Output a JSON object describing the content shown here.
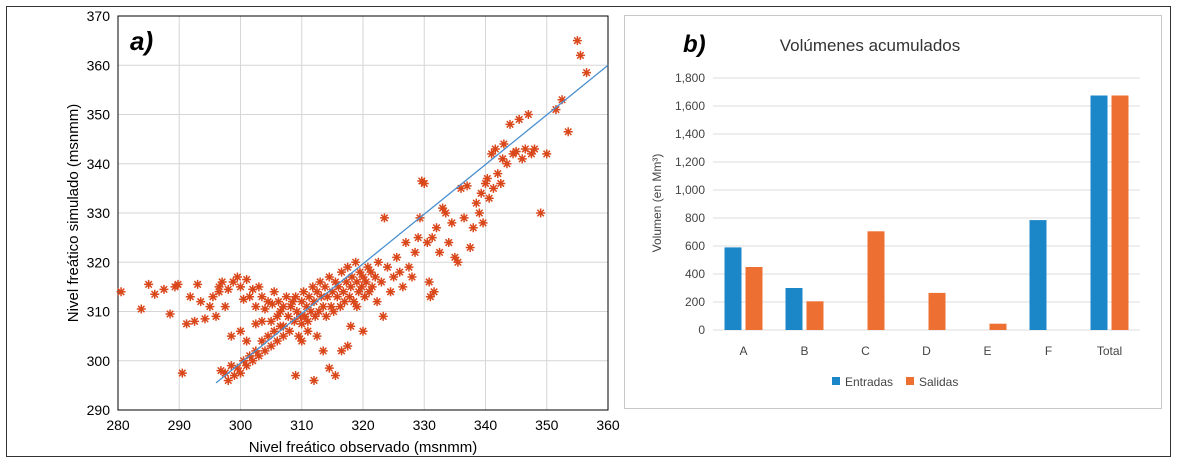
{
  "chart_data": [
    {
      "type": "scatter",
      "panel_label": "a)",
      "title": "",
      "xlabel": "Nivel freático observado (msnmm)",
      "ylabel": "Nivel freático simulado (msnmm)",
      "xlim": [
        280,
        360
      ],
      "ylim": [
        290,
        370
      ],
      "xticks": [
        "280",
        "290",
        "300",
        "310",
        "320",
        "330",
        "340",
        "350",
        "360"
      ],
      "yticks": [
        "290",
        "300",
        "310",
        "320",
        "330",
        "340",
        "350",
        "360",
        "370"
      ],
      "grid": true,
      "marker": "asterisk",
      "marker_color": "#d9471a",
      "fit_line": {
        "color": "#4a8fcf",
        "points": [
          [
            296,
            295.5
          ],
          [
            360,
            360
          ]
        ]
      },
      "points": [
        [
          280.5,
          314
        ],
        [
          283.8,
          310.5
        ],
        [
          285,
          315.5
        ],
        [
          286,
          313.5
        ],
        [
          287.5,
          314.5
        ],
        [
          288.5,
          309.5
        ],
        [
          289.3,
          315
        ],
        [
          289.8,
          315.5
        ],
        [
          290.5,
          297.5
        ],
        [
          291.2,
          307.5
        ],
        [
          291.8,
          313
        ],
        [
          292.5,
          308
        ],
        [
          293,
          315.5
        ],
        [
          293.5,
          312
        ],
        [
          294.2,
          308.5
        ],
        [
          295,
          311
        ],
        [
          295.5,
          313
        ],
        [
          296,
          309
        ],
        [
          296.5,
          314
        ],
        [
          297,
          316
        ],
        [
          297.5,
          311
        ],
        [
          298,
          314.5
        ],
        [
          298.8,
          316
        ],
        [
          299.5,
          317
        ],
        [
          300,
          315
        ],
        [
          300.5,
          312.5
        ],
        [
          301,
          316.5
        ],
        [
          301.5,
          313
        ],
        [
          302,
          314.5
        ],
        [
          302.5,
          311
        ],
        [
          303,
          315
        ],
        [
          303.5,
          313
        ],
        [
          304,
          310.5
        ],
        [
          304.5,
          312
        ],
        [
          305,
          308
        ],
        [
          305.2,
          311.5
        ],
        [
          305.5,
          314
        ],
        [
          306,
          309
        ],
        [
          306.2,
          312
        ],
        [
          306.5,
          310
        ],
        [
          307,
          307
        ],
        [
          307,
          311
        ],
        [
          307.5,
          313
        ],
        [
          307.8,
          309
        ],
        [
          308,
          306
        ],
        [
          308.2,
          311
        ],
        [
          308.5,
          312
        ],
        [
          308.8,
          308
        ],
        [
          309,
          313
        ],
        [
          309.2,
          310
        ],
        [
          309.5,
          305
        ],
        [
          309.8,
          309
        ],
        [
          310,
          307.5
        ],
        [
          310,
          312
        ],
        [
          310.3,
          314
        ],
        [
          310.5,
          309
        ],
        [
          310.8,
          311
        ],
        [
          311,
          308
        ],
        [
          311.2,
          313
        ],
        [
          311.5,
          310
        ],
        [
          311.8,
          315
        ],
        [
          312,
          312
        ],
        [
          312.2,
          309
        ],
        [
          312.5,
          314
        ],
        [
          312.8,
          310
        ],
        [
          313,
          316
        ],
        [
          313.2,
          313
        ],
        [
          313.5,
          311
        ],
        [
          313.8,
          315
        ],
        [
          314,
          309
        ],
        [
          314.2,
          313
        ],
        [
          314.5,
          317
        ],
        [
          314.8,
          311
        ],
        [
          315,
          314
        ],
        [
          315.2,
          310
        ],
        [
          315.5,
          316
        ],
        [
          315.8,
          313
        ],
        [
          316,
          315
        ],
        [
          316.3,
          311
        ],
        [
          316.5,
          318
        ],
        [
          316.8,
          314
        ],
        [
          317,
          312
        ],
        [
          317.3,
          316
        ],
        [
          317.5,
          319
        ],
        [
          317.8,
          313
        ],
        [
          318,
          315
        ],
        [
          318.2,
          317
        ],
        [
          318.5,
          312
        ],
        [
          318.8,
          320
        ],
        [
          319,
          316
        ],
        [
          319.3,
          314
        ],
        [
          319.5,
          318
        ],
        [
          319.8,
          315
        ],
        [
          320,
          317
        ],
        [
          320.3,
          313
        ],
        [
          320.5,
          316
        ],
        [
          320.8,
          319
        ],
        [
          321,
          314
        ],
        [
          321.3,
          318
        ],
        [
          321.5,
          315
        ],
        [
          322,
          317
        ],
        [
          322.3,
          312
        ],
        [
          322.5,
          320
        ],
        [
          323,
          316
        ],
        [
          323.3,
          309
        ],
        [
          323.5,
          329
        ],
        [
          324,
          319
        ],
        [
          324.5,
          314
        ],
        [
          325,
          317
        ],
        [
          325.5,
          321
        ],
        [
          326,
          318
        ],
        [
          326.5,
          315
        ],
        [
          327,
          324
        ],
        [
          327.5,
          319
        ],
        [
          328,
          317
        ],
        [
          328.5,
          322
        ],
        [
          329,
          325
        ],
        [
          329.3,
          329
        ],
        [
          329.6,
          336.5
        ],
        [
          330,
          336
        ],
        [
          330.5,
          324
        ],
        [
          330.8,
          316
        ],
        [
          331,
          313
        ],
        [
          331.3,
          325
        ],
        [
          331.6,
          314
        ],
        [
          332,
          327
        ],
        [
          332.5,
          322
        ],
        [
          333,
          331
        ],
        [
          333.5,
          330
        ],
        [
          334,
          324
        ],
        [
          334.5,
          328
        ],
        [
          335,
          321
        ],
        [
          335.5,
          320
        ],
        [
          336,
          335
        ],
        [
          336.5,
          329
        ],
        [
          337,
          335.5
        ],
        [
          337.5,
          323
        ],
        [
          338,
          327
        ],
        [
          338.5,
          332
        ],
        [
          339,
          330
        ],
        [
          339.3,
          334
        ],
        [
          339.6,
          328
        ],
        [
          340,
          336
        ],
        [
          340.3,
          337
        ],
        [
          340.6,
          333
        ],
        [
          341,
          342
        ],
        [
          341.3,
          335
        ],
        [
          341.6,
          343
        ],
        [
          342,
          338
        ],
        [
          342.5,
          336
        ],
        [
          342.8,
          341
        ],
        [
          343,
          344
        ],
        [
          343.5,
          340
        ],
        [
          344,
          348
        ],
        [
          344.5,
          342
        ],
        [
          345,
          342.5
        ],
        [
          345.5,
          349
        ],
        [
          346,
          341
        ],
        [
          346.5,
          343
        ],
        [
          347,
          350
        ],
        [
          347.5,
          342
        ],
        [
          348,
          343
        ],
        [
          349,
          330
        ],
        [
          350,
          342
        ],
        [
          351.5,
          351
        ],
        [
          352.5,
          353
        ],
        [
          353.5,
          346.5
        ],
        [
          355,
          365
        ],
        [
          355.5,
          362
        ],
        [
          356.5,
          358.5
        ],
        [
          296.8,
          298
        ],
        [
          297.5,
          297.5
        ],
        [
          298,
          296
        ],
        [
          298.5,
          299
        ],
        [
          299,
          297
        ],
        [
          299.5,
          298.5
        ],
        [
          300,
          297.5
        ],
        [
          300.5,
          300
        ],
        [
          301,
          299
        ],
        [
          301.5,
          301
        ],
        [
          302,
          300
        ],
        [
          302.5,
          302
        ],
        [
          303,
          301
        ],
        [
          303.5,
          304
        ],
        [
          304,
          302
        ],
        [
          304.5,
          305
        ],
        [
          305,
          303
        ],
        [
          305.5,
          306
        ],
        [
          306,
          304
        ],
        [
          306.5,
          307
        ],
        [
          307,
          305
        ],
        [
          300,
          306
        ],
        [
          301,
          304
        ],
        [
          302.5,
          307.5
        ],
        [
          303.5,
          308
        ],
        [
          309,
          297
        ],
        [
          312,
          296
        ],
        [
          314.5,
          298.5
        ],
        [
          315.5,
          297
        ],
        [
          316.5,
          302
        ],
        [
          317.5,
          303
        ],
        [
          318,
          307
        ],
        [
          319,
          311
        ],
        [
          320,
          306
        ],
        [
          310,
          304
        ],
        [
          311,
          306
        ],
        [
          312.5,
          305
        ],
        [
          313.5,
          302
        ],
        [
          296.5,
          315
        ],
        [
          298.5,
          305
        ]
      ]
    },
    {
      "type": "bar",
      "panel_label": "b)",
      "title": "Volúmenes acumulados",
      "xlabel": "",
      "ylabel": "Volumen (en Mm³)",
      "ylim": [
        0,
        1800
      ],
      "yticks": [
        "0",
        "200",
        "400",
        "600",
        "800",
        "1,000",
        "1,200",
        "1,400",
        "1,600",
        "1,800"
      ],
      "categories": [
        "A",
        "B",
        "C",
        "D",
        "E",
        "F",
        "Total"
      ],
      "series": [
        {
          "name": "Entradas",
          "color": "#1b87c9",
          "values": [
            590,
            300,
            0,
            0,
            0,
            785,
            1675
          ]
        },
        {
          "name": "Salidas",
          "color": "#ed7032",
          "values": [
            450,
            205,
            705,
            265,
            45,
            0,
            1675
          ]
        }
      ],
      "legend": "bottom",
      "grid": true
    }
  ]
}
